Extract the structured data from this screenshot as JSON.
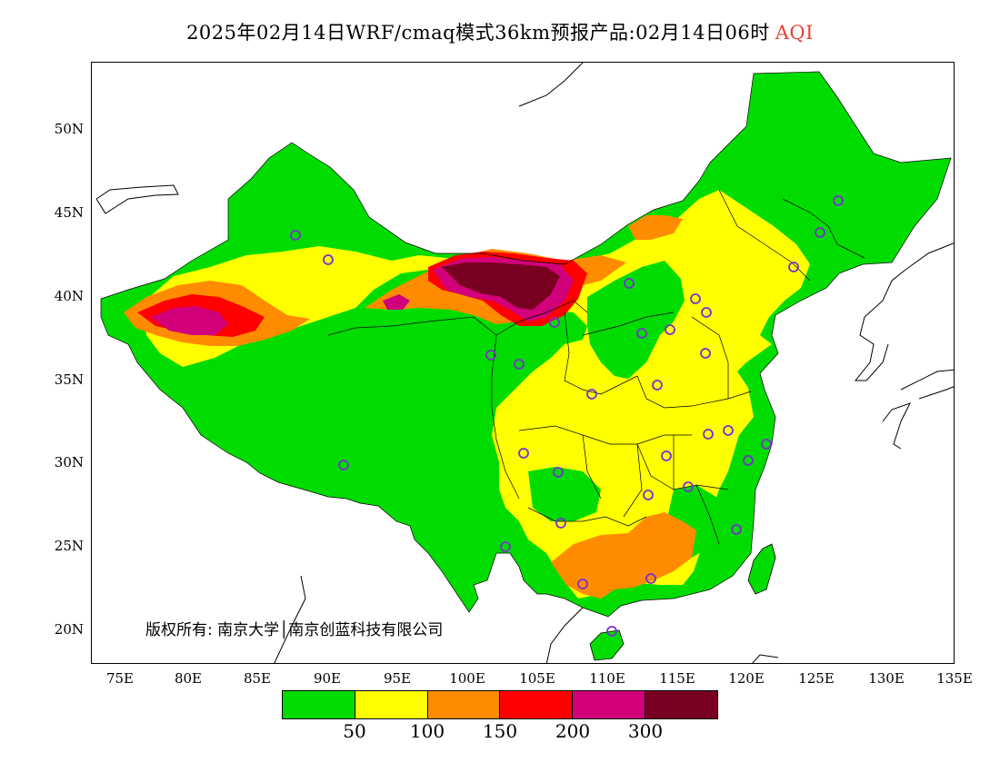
{
  "title": {
    "main": "2025年02月14日WRF/cmaq模式36km预报产品:02月14日06时",
    "variable": "AQI"
  },
  "map": {
    "lat_ticks": [
      "50N",
      "45N",
      "40N",
      "35N",
      "30N",
      "25N",
      "20N"
    ],
    "lon_ticks": [
      "75E",
      "80E",
      "85E",
      "90E",
      "95E",
      "100E",
      "105E",
      "110E",
      "115E",
      "120E",
      "125E",
      "130E",
      "135E"
    ],
    "colors": {
      "good": "#00dc00",
      "moderate": "#ffff00",
      "sensitive": "#ff8c00",
      "unhealthy": "#ff0000",
      "very_unhealthy": "#d2007a",
      "hazardous": "#780020",
      "station": "#7b2fd0",
      "land_outline": "#000000"
    }
  },
  "copyright": "版权所有: 南京大学│南京创蓝科技有限公司",
  "legend": {
    "colors": [
      "#00dc00",
      "#ffff00",
      "#ff8c00",
      "#ff0000",
      "#d2007a",
      "#780020"
    ],
    "labels": [
      "50",
      "100",
      "150",
      "200",
      "300"
    ]
  }
}
